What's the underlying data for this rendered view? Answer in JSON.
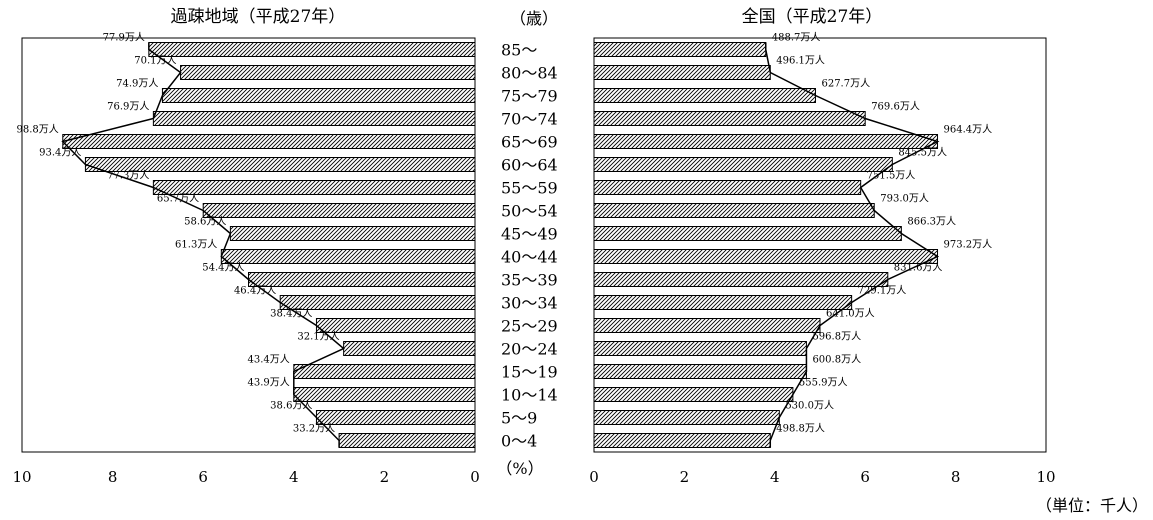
{
  "chart_data": [
    {
      "type": "bar",
      "title": "過疎地域（平成27年）",
      "orientation": "horizontal",
      "x_direction": "reversed",
      "xlim": [
        0,
        10
      ],
      "xticks": [
        "10",
        "8",
        "6",
        "4",
        "2",
        "0"
      ],
      "categories": [
        "85～",
        "80～84",
        "75～79",
        "70～74",
        "65～69",
        "60～64",
        "55～59",
        "50～54",
        "45～49",
        "40～44",
        "35～39",
        "30～34",
        "25～29",
        "20～24",
        "15～19",
        "10～14",
        "5～9",
        "0～4"
      ],
      "values": [
        7.2,
        6.5,
        6.9,
        7.1,
        9.1,
        8.6,
        7.1,
        6.0,
        5.4,
        5.6,
        5.0,
        4.3,
        3.5,
        2.9,
        4.0,
        4.0,
        3.5,
        3.0
      ],
      "data_labels": [
        "77.9万人",
        "70.1万人",
        "74.9万人",
        "76.9万人",
        "98.8万人",
        "93.4万人",
        "77.3万人",
        "65.7万人",
        "58.6万人",
        "61.3万人",
        "54.4万人",
        "46.4万人",
        "38.4万人",
        "32.1万人",
        "43.4万人",
        "43.9万人",
        "38.6万人",
        "33.2万人"
      ]
    },
    {
      "type": "bar",
      "title": "全国（平成27年）",
      "orientation": "horizontal",
      "xlim": [
        0,
        10
      ],
      "xticks": [
        "0",
        "2",
        "4",
        "6",
        "8",
        "10"
      ],
      "categories": [
        "85～",
        "80～84",
        "75～79",
        "70～74",
        "65～69",
        "60～64",
        "55～59",
        "50～54",
        "45～49",
        "40～44",
        "35～39",
        "30～34",
        "25～29",
        "20～24",
        "15～19",
        "10～14",
        "5～9",
        "0～4"
      ],
      "values": [
        3.8,
        3.9,
        4.9,
        6.0,
        7.6,
        6.6,
        5.9,
        6.2,
        6.8,
        7.6,
        6.5,
        5.7,
        5.0,
        4.7,
        4.7,
        4.4,
        4.1,
        3.9
      ],
      "data_labels": [
        "488.7万人",
        "496.1万人",
        "627.7万人",
        "769.6万人",
        "964.4万人",
        "845.5万人",
        "751.5万人",
        "793.0万人",
        "866.3万人",
        "973.2万人",
        "831.6万人",
        "729.1万人",
        "641.0万人",
        "596.8万人",
        "600.8万人",
        "555.9万人",
        "530.0万人",
        "498.8万人"
      ]
    }
  ],
  "axis_labels": {
    "age_unit": "（歳）",
    "percent_unit": "（%）",
    "count_unit": "（単位：千人）"
  },
  "colors": {
    "bar_stroke": "#000000",
    "hatch": "#000000",
    "frame": "#000000"
  }
}
